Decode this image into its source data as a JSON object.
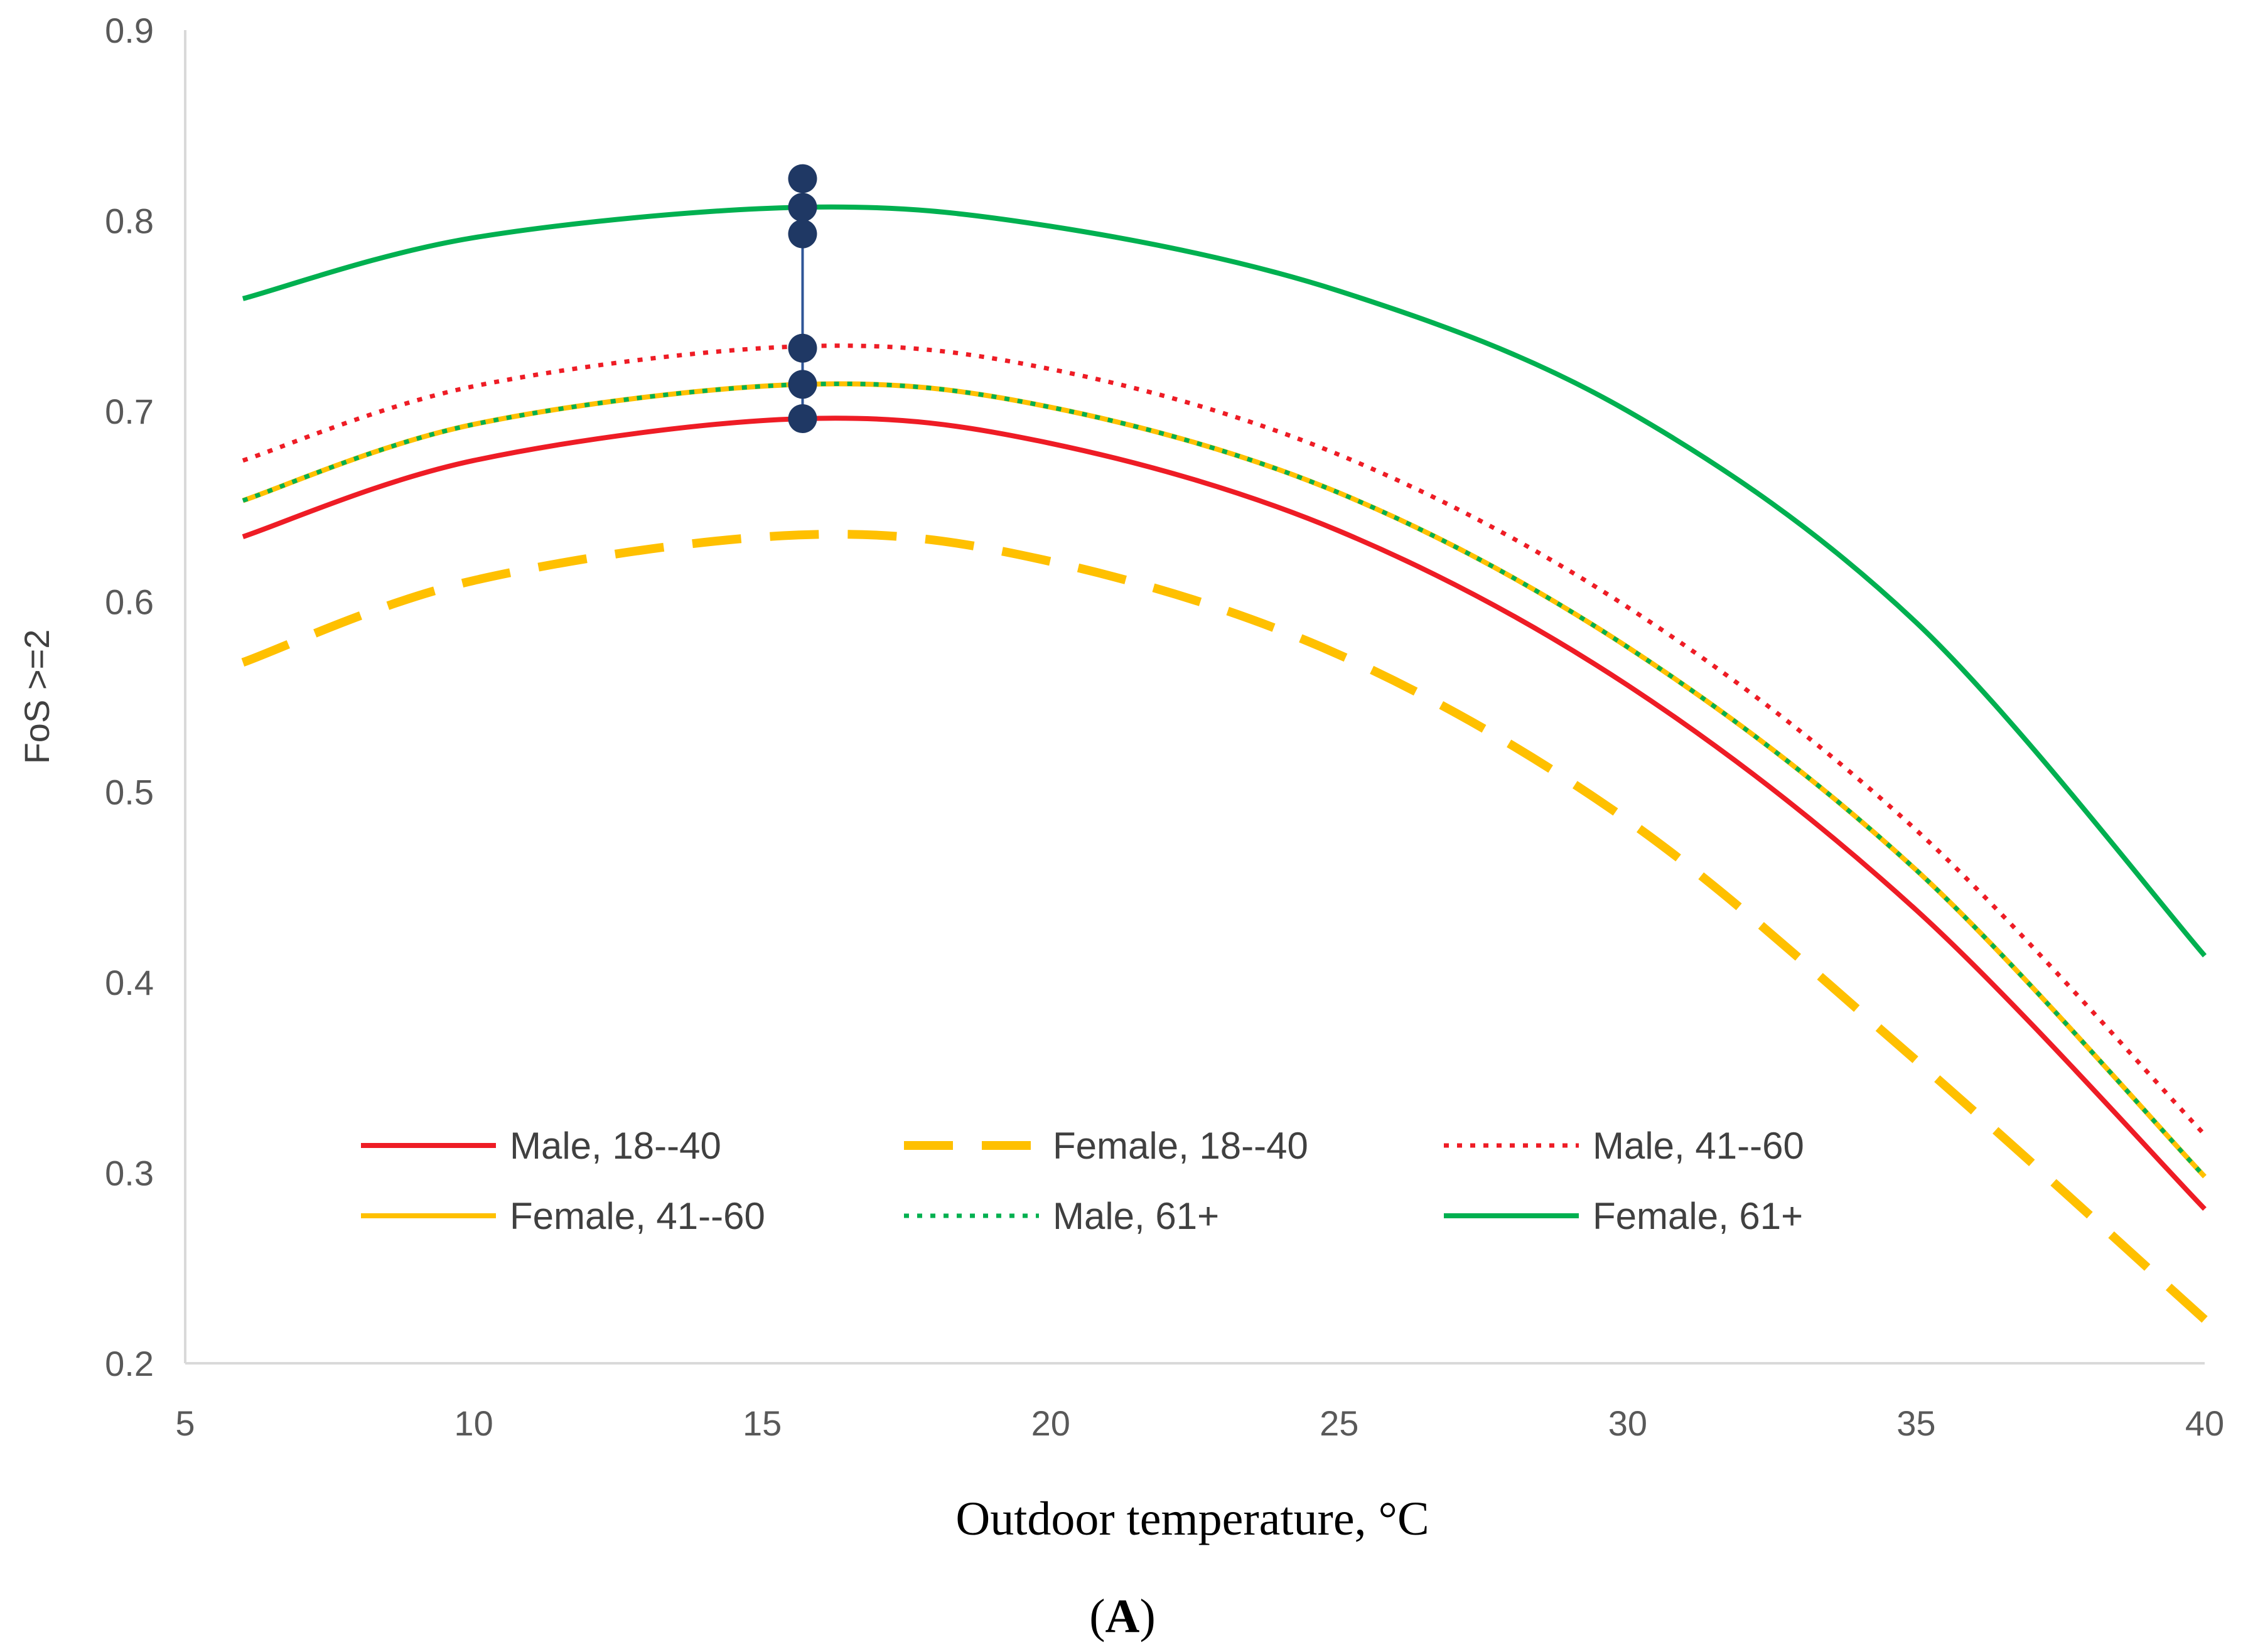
{
  "chart_data": {
    "type": "line",
    "xlabel": "Outdoor temperature, °C",
    "ylabel": "FoS >=2",
    "panel_label": "A",
    "xlim": [
      5,
      40
    ],
    "ylim": [
      0.2,
      0.9
    ],
    "xticks": [
      5,
      10,
      15,
      20,
      25,
      30,
      35,
      40
    ],
    "yticks": [
      0.2,
      0.3,
      0.4,
      0.5,
      0.6,
      0.7,
      0.8,
      0.9
    ],
    "xtick_labels": [
      "5",
      "10",
      "15",
      "20",
      "25",
      "30",
      "35",
      "40"
    ],
    "ytick_labels": [
      "0.2",
      "0.3",
      "0.4",
      "0.5",
      "0.6",
      "0.7",
      "0.8",
      "0.9"
    ],
    "grid": false,
    "legend_position": "bottom-left inside plot",
    "series": [
      {
        "name": "Male, 18--40",
        "style": "solid",
        "color": "#ee1c25",
        "x": [
          6,
          10,
          15.7,
          20,
          25,
          30,
          35,
          40
        ],
        "y": [
          0.634,
          0.674,
          0.696,
          0.683,
          0.637,
          0.556,
          0.438,
          0.281
        ]
      },
      {
        "name": "Female, 18--40",
        "style": "dashed",
        "color": "#ffc000",
        "x": [
          6,
          10,
          15.7,
          20,
          25,
          30,
          35,
          40
        ],
        "y": [
          0.568,
          0.611,
          0.635,
          0.621,
          0.572,
          0.485,
          0.359,
          0.223
        ]
      },
      {
        "name": "Male, 41--60",
        "style": "dotted",
        "color": "#ee1c25",
        "x": [
          6,
          10,
          15.7,
          20,
          25,
          30,
          35,
          40
        ],
        "y": [
          0.674,
          0.713,
          0.734,
          0.722,
          0.677,
          0.597,
          0.48,
          0.32
        ]
      },
      {
        "name": "Female, 41--60",
        "style": "solid",
        "color": "#ffc000",
        "x": [
          6,
          10,
          15.7,
          20,
          25,
          30,
          35,
          40
        ],
        "y": [
          0.653,
          0.693,
          0.714,
          0.702,
          0.657,
          0.576,
          0.459,
          0.298
        ]
      },
      {
        "name": "Male, 61+",
        "style": "dotted",
        "color": "#00b050",
        "x": [
          6,
          10,
          15.7,
          20,
          25,
          30,
          35,
          40
        ],
        "y": [
          0.653,
          0.693,
          0.714,
          0.702,
          0.657,
          0.576,
          0.459,
          0.298
        ]
      },
      {
        "name": "Female, 61+",
        "style": "solid",
        "color": "#00b050",
        "x": [
          6,
          10,
          15.7,
          20,
          25,
          30,
          35,
          40
        ],
        "y": [
          0.759,
          0.791,
          0.807,
          0.797,
          0.763,
          0.7,
          0.589,
          0.414
        ]
      }
    ],
    "markers": {
      "color": "#1f3864",
      "line_color": "#2f5597",
      "x": 15.7,
      "y": [
        0.822,
        0.807,
        0.793,
        0.733,
        0.714,
        0.696
      ]
    }
  }
}
